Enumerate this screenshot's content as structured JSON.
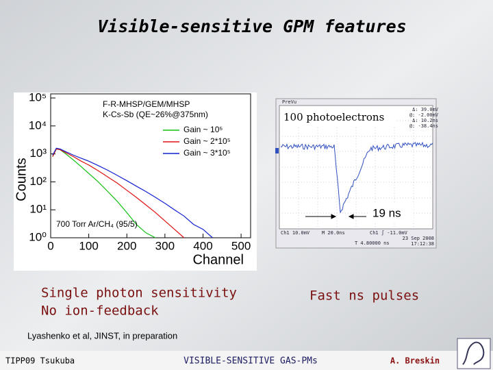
{
  "title": "Visible-sensitive GPM features",
  "chart_data": {
    "type": "line",
    "ylabel": "Counts",
    "xlabel": "Channel",
    "yscale": "log",
    "xlim": [
      0,
      525
    ],
    "ylim": [
      1,
      100000
    ],
    "xticks": [
      0,
      100,
      200,
      300,
      400,
      500
    ],
    "yticks": [
      {
        "value": 1,
        "label": "10⁰"
      },
      {
        "value": 10,
        "label": "10¹"
      },
      {
        "value": 100,
        "label": "10²"
      },
      {
        "value": 1000,
        "label": "10³"
      },
      {
        "value": 10000,
        "label": "10⁴"
      },
      {
        "value": 100000,
        "label": "10⁵"
      }
    ],
    "legend": "upper right",
    "annotations": [
      "F-R-MHSP/GEM/MHSP",
      "K-Cs-Sb (QE~26%@375nm)",
      "700 Torr Ar/CH₄ (95/5)"
    ],
    "x": [
      5,
      15,
      25,
      40,
      60,
      80,
      100,
      125,
      150,
      175,
      200,
      225,
      250,
      275,
      300,
      325,
      350,
      375,
      400,
      425,
      450,
      475,
      500
    ],
    "series": [
      {
        "name": "Gain ~ 10⁵",
        "color": "#10c010",
        "values": [
          800,
          1500,
          1400,
          1000,
          600,
          350,
          200,
          100,
          45,
          20,
          8,
          3,
          1.5,
          1,
          null,
          null,
          null,
          null,
          null,
          null,
          null,
          null,
          null
        ]
      },
      {
        "name": "Gain ~ 2*10⁵",
        "color": "#e01010",
        "values": [
          800,
          1500,
          1400,
          1100,
          800,
          550,
          400,
          250,
          150,
          90,
          50,
          28,
          15,
          8,
          4,
          2,
          1,
          null,
          null,
          null,
          null,
          null,
          null
        ]
      },
      {
        "name": "Gain ~ 3*10⁵",
        "color": "#1020d0",
        "values": [
          900,
          1600,
          1500,
          1200,
          900,
          700,
          550,
          380,
          260,
          170,
          110,
          70,
          45,
          28,
          17,
          10,
          6,
          3,
          2,
          1,
          null,
          null,
          null
        ]
      }
    ]
  },
  "scope": {
    "mode": "PreVu",
    "readout": [
      "Δ: 39.0mV",
      "@: -2.00mV",
      "Δ: 10.2ns",
      "@: -38.4ns"
    ],
    "bottom": [
      "Ch1 10.0mV",
      "M 20.0ns",
      "Ch1 ∫ -11.0mV",
      "T 4.80000 ns",
      "23 Sep 2008",
      "17:12:38"
    ],
    "label": "100 photoelectrons",
    "width": "19 ns"
  },
  "captions": {
    "left": [
      "Single photon sensitivity",
      "No ion-feedback"
    ],
    "right": "Fast ns pulses"
  },
  "reference": "Lyashenko et al, JINST, in preparation",
  "footer": {
    "left": "TIPP09 Tsukuba",
    "center": "VISIBLE-SENSITIVE GAS-PMs",
    "right": "A. Breskin"
  }
}
